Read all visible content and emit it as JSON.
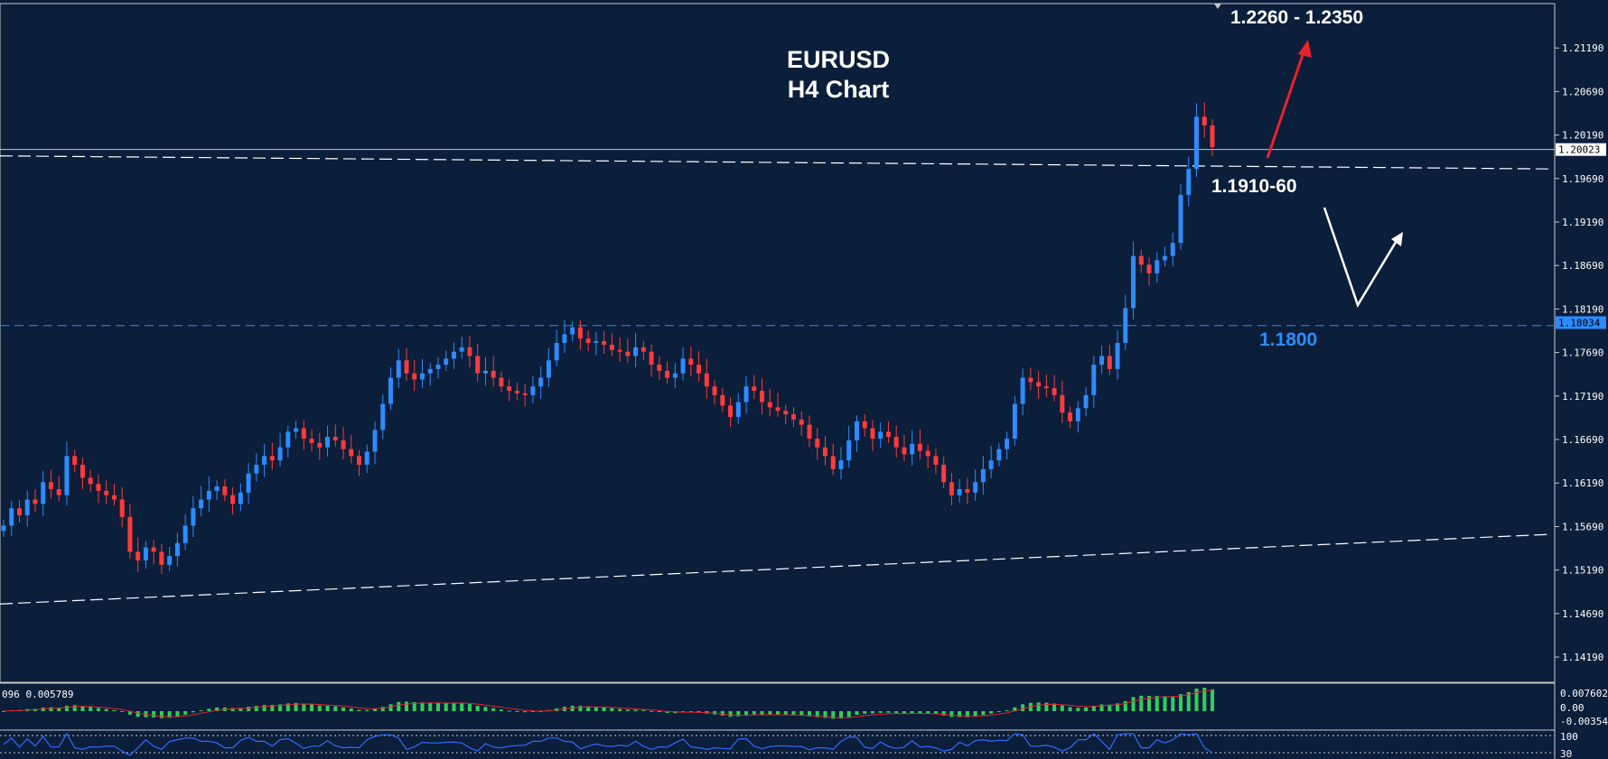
{
  "chart_data": {
    "type": "candlestick",
    "title": "EURUSD",
    "subtitle": "H4 Chart",
    "symbol": "EURUSD",
    "timeframe": "H4",
    "ylim": [
      1.139,
      1.217
    ],
    "y_ticks": [
      "1.21190",
      "1.20690",
      "1.20190",
      "1.19690",
      "1.19190",
      "1.18690",
      "1.18190",
      "1.17690",
      "1.17190",
      "1.16690",
      "1.16190",
      "1.15690",
      "1.15190",
      "1.14690",
      "1.14190"
    ],
    "price_tags": [
      {
        "label": "1.20023",
        "value": 1.20023,
        "color": "#ffffff",
        "text_color": "#000000"
      },
      {
        "label": "1.18034",
        "value": 1.18034,
        "color": "#2d8cff",
        "text_color": "#000000"
      }
    ],
    "levels": [
      {
        "label": "1.1800",
        "value": 1.18,
        "style": "dashed",
        "color": "#2d8cff"
      },
      {
        "label": "1.20023",
        "value": 1.20023,
        "style": "solid",
        "color": "#c8c8c8"
      }
    ],
    "channel": {
      "upper": {
        "start": 1.1995,
        "end": 1.198
      },
      "lower": {
        "start": 1.148,
        "end": 1.156
      }
    },
    "annotations": [
      {
        "label": "1.2260 - 1.2350",
        "color": "#ffffff"
      },
      {
        "label": "1.1910-60",
        "color": "#ffffff"
      },
      {
        "label": "1.1800",
        "color": "#2d8cff"
      }
    ],
    "close_series": [
      1.157,
      1.159,
      1.1582,
      1.16,
      1.1595,
      1.162,
      1.1612,
      1.1605,
      1.165,
      1.164,
      1.1625,
      1.1618,
      1.161,
      1.1605,
      1.16,
      1.158,
      1.154,
      1.153,
      1.1545,
      1.154,
      1.1525,
      1.1535,
      1.155,
      1.157,
      1.159,
      1.16,
      1.161,
      1.1615,
      1.1605,
      1.1595,
      1.1608,
      1.163,
      1.164,
      1.165,
      1.1645,
      1.166,
      1.1678,
      1.1682,
      1.167,
      1.1665,
      1.166,
      1.1672,
      1.1668,
      1.1658,
      1.165,
      1.164,
      1.1655,
      1.168,
      1.171,
      1.174,
      1.176,
      1.1745,
      1.1738,
      1.1745,
      1.175,
      1.1755,
      1.1762,
      1.177,
      1.1775,
      1.1765,
      1.1745,
      1.1748,
      1.174,
      1.173,
      1.1725,
      1.1722,
      1.172,
      1.173,
      1.174,
      1.176,
      1.178,
      1.179,
      1.1798,
      1.1785,
      1.178,
      1.1782,
      1.1778,
      1.1772,
      1.177,
      1.1765,
      1.1775,
      1.177,
      1.1755,
      1.1748,
      1.174,
      1.1745,
      1.1762,
      1.1755,
      1.1745,
      1.173,
      1.172,
      1.1708,
      1.1695,
      1.1712,
      1.173,
      1.1725,
      1.1712,
      1.1706,
      1.1702,
      1.1698,
      1.1692,
      1.1686,
      1.167,
      1.166,
      1.165,
      1.1635,
      1.1645,
      1.1668,
      1.169,
      1.1682,
      1.167,
      1.1678,
      1.1672,
      1.166,
      1.1652,
      1.1664,
      1.1656,
      1.165,
      1.164,
      1.162,
      1.1605,
      1.1612,
      1.1608,
      1.162,
      1.1635,
      1.1645,
      1.1658,
      1.167,
      1.171,
      1.174,
      1.1735,
      1.173,
      1.1728,
      1.172,
      1.17,
      1.169,
      1.1705,
      1.172,
      1.1755,
      1.1765,
      1.175,
      1.178,
      1.182,
      1.188,
      1.187,
      1.186,
      1.1875,
      1.188,
      1.1895,
      1.195,
      1.198,
      1.204,
      1.203,
      1.2005
    ],
    "macd": {
      "label": "096 0.005789",
      "ticks": [
        "0.007602",
        "0.00",
        "-0.003542"
      ]
    },
    "rsi": {
      "ticks": [
        "100",
        "30"
      ]
    }
  }
}
